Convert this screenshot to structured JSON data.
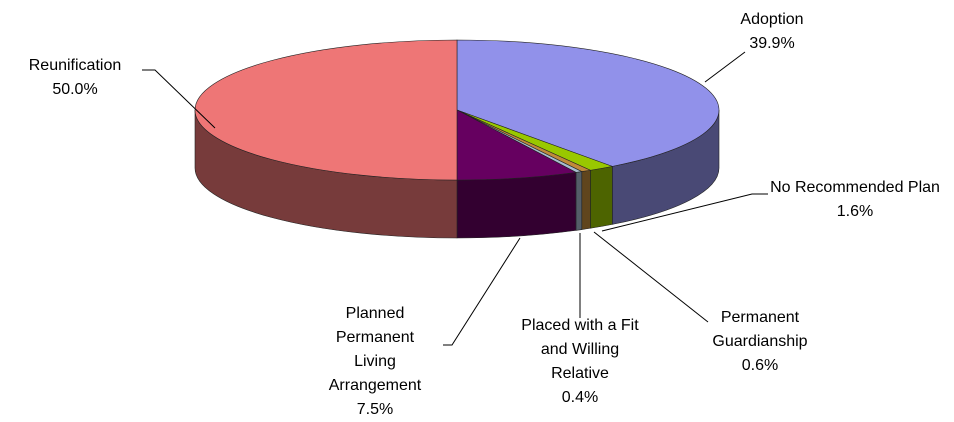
{
  "chart_data": {
    "type": "pie",
    "categories": [
      "Adoption",
      "No Recommended Plan",
      "Permanent Guardianship",
      "Placed with a Fit and Willing Relative",
      "Planned Permanent Living Arrangement",
      "Reunification"
    ],
    "values": [
      39.9,
      1.6,
      0.6,
      0.4,
      7.5,
      50.0
    ],
    "value_labels": [
      "39.9%",
      "1.6%",
      "0.6%",
      "0.4%",
      "7.5%",
      "50.0%"
    ],
    "colors": [
      "#9191ea",
      "#99c800",
      "#c08a3a",
      "#a8bccf",
      "#660060",
      "#ee7676"
    ]
  }
}
